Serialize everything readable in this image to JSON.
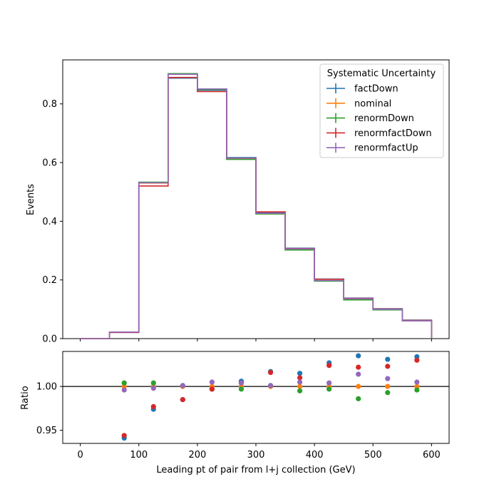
{
  "chart_data": {
    "type": "step-histogram-with-ratio",
    "xlabel": "Leading pt of pair from l+j collection (GeV)",
    "xlim": [
      -30,
      630
    ],
    "xticks": [
      0,
      100,
      200,
      300,
      400,
      500,
      600
    ],
    "bin_edges": [
      0,
      50,
      100,
      150,
      200,
      250,
      300,
      350,
      400,
      450,
      500,
      550,
      600
    ],
    "bin_centers": [
      75,
      125,
      175,
      225,
      275,
      325,
      375,
      425,
      475,
      525,
      575
    ],
    "main": {
      "ylabel": "Events",
      "ylim": [
        0,
        0.95
      ],
      "yticks": [
        "0.0",
        "0.2",
        "0.4",
        "0.6",
        "0.8"
      ],
      "ytick_values": [
        0,
        0.2,
        0.4,
        0.6,
        0.8
      ]
    },
    "ratio": {
      "ylabel": "Ratio",
      "ylim": [
        0.935,
        1.04
      ],
      "yticks": [
        "0.95",
        "1.00"
      ],
      "ytick_values": [
        0.95,
        1.0
      ],
      "reference_line": 1.0
    },
    "legend": {
      "title": "Systematic Uncertainty",
      "placement": "top-right"
    },
    "series": [
      {
        "name": "factDown",
        "color": "#1f77b4",
        "values": [
          0,
          0.021,
          0.533,
          0.888,
          0.847,
          0.617,
          0.428,
          0.308,
          0.203,
          0.138,
          0.102,
          0.063
        ],
        "ratio": [
          0.941,
          0.974,
          0.985,
          0.997,
          1.006,
          1.017,
          1.015,
          1.027,
          1.035,
          1.031,
          1.034
        ]
      },
      {
        "name": "nominal",
        "color": "#ff7f0e",
        "values": [
          0,
          0.0224,
          0.53,
          0.902,
          0.85,
          0.613,
          0.425,
          0.304,
          0.197,
          0.134,
          0.099,
          0.061
        ],
        "ratio": [
          1.0,
          1.0,
          1.0,
          1.0,
          1.0,
          1.0,
          1.0,
          1.0,
          1.0,
          1.0,
          1.0
        ]
      },
      {
        "name": "renormDown",
        "color": "#2ca02c",
        "values": [
          0,
          0.0225,
          0.533,
          0.903,
          0.849,
          0.611,
          0.425,
          0.302,
          0.196,
          0.132,
          0.098,
          0.061
        ],
        "ratio": [
          1.004,
          1.004,
          1.001,
          0.997,
          0.997,
          1.001,
          0.995,
          0.997,
          0.986,
          0.993,
          0.996
        ]
      },
      {
        "name": "renormfactDown",
        "color": "#d62728",
        "values": [
          0,
          0.021,
          0.52,
          0.89,
          0.842,
          0.615,
          0.432,
          0.307,
          0.202,
          0.137,
          0.101,
          0.062
        ],
        "ratio": [
          0.944,
          0.977,
          0.985,
          0.997,
          1.004,
          1.016,
          1.01,
          1.024,
          1.022,
          1.023,
          1.03
        ]
      },
      {
        "name": "renormfactUp",
        "color": "#9467bd",
        "values": [
          0,
          0.0223,
          0.531,
          0.901,
          0.851,
          0.615,
          0.427,
          0.306,
          0.198,
          0.136,
          0.1,
          0.061
        ],
        "ratio": [
          0.996,
          0.998,
          1.001,
          1.005,
          1.004,
          1.001,
          1.005,
          1.004,
          1.014,
          1.009,
          1.005
        ]
      }
    ]
  }
}
